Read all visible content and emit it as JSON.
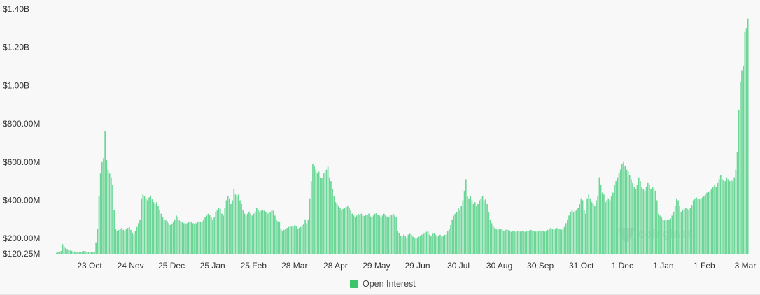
{
  "colors": {
    "bar": "#6bd797",
    "bar_edge": "#5ccc89",
    "text": "#333333",
    "legend_swatch": "#3cc46d"
  },
  "watermark": {
    "text": "coinglass"
  },
  "legend": {
    "label": "Open Interest"
  },
  "chart_data": {
    "type": "bar",
    "title": "",
    "xlabel": "",
    "ylabel": "",
    "series": [
      {
        "name": "Open Interest",
        "color": "#6bd797"
      }
    ],
    "ylim": [
      120250000,
      1400000000
    ],
    "yticks": [
      {
        "value": 120250000,
        "label": "$120.25M"
      },
      {
        "value": 200000000,
        "label": "$200.00M"
      },
      {
        "value": 400000000,
        "label": "$400.00M"
      },
      {
        "value": 600000000,
        "label": "$600.00M"
      },
      {
        "value": 800000000,
        "label": "$800.00M"
      },
      {
        "value": 1000000000,
        "label": "$1.00B"
      },
      {
        "value": 1200000000,
        "label": "$1.20B"
      },
      {
        "value": 1400000000,
        "label": "$1.40B"
      }
    ],
    "xticks": [
      "23 Oct",
      "24 Nov",
      "25 Dec",
      "25 Jan",
      "25 Feb",
      "28 Mar",
      "28 Apr",
      "29 May",
      "29 Jun",
      "30 Jul",
      "30 Aug",
      "30 Sep",
      "31 Oct",
      "1 Dec",
      "1 Jan",
      "1 Feb",
      "3 Mar"
    ],
    "grid": false,
    "legend_position": "bottom-center",
    "values_millions": [
      125,
      128,
      132,
      135,
      170,
      158,
      150,
      145,
      140,
      138,
      135,
      132,
      132,
      130,
      128,
      130,
      128,
      132,
      135,
      133,
      131,
      129,
      130,
      128,
      127,
      130,
      180,
      250,
      420,
      540,
      600,
      620,
      760,
      610,
      560,
      540,
      520,
      480,
      350,
      250,
      240,
      245,
      250,
      255,
      245,
      240,
      250,
      255,
      260,
      245,
      230,
      220,
      240,
      260,
      280,
      300,
      410,
      430,
      420,
      410,
      400,
      415,
      425,
      405,
      390,
      380,
      390,
      370,
      350,
      330,
      310,
      300,
      295,
      290,
      280,
      270,
      275,
      285,
      300,
      320,
      310,
      295,
      290,
      285,
      280,
      275,
      280,
      285,
      290,
      285,
      280,
      275,
      280,
      285,
      290,
      288,
      290,
      300,
      310,
      320,
      330,
      325,
      310,
      300,
      310,
      340,
      350,
      360,
      355,
      330,
      320,
      360,
      400,
      420,
      410,
      380,
      400,
      460,
      430,
      420,
      430,
      400,
      380,
      350,
      330,
      320,
      330,
      340,
      330,
      320,
      330,
      340,
      360,
      350,
      340,
      345,
      350,
      345,
      340,
      330,
      335,
      340,
      350,
      345,
      320,
      300,
      290,
      285,
      250,
      240,
      245,
      250,
      255,
      260,
      262,
      265,
      260,
      270,
      265,
      250,
      255,
      260,
      270,
      275,
      300,
      280,
      300,
      410,
      500,
      590,
      580,
      560,
      540,
      550,
      520,
      515,
      540,
      545,
      560,
      575,
      520,
      500,
      460,
      420,
      390,
      380,
      370,
      360,
      350,
      355,
      360,
      365,
      370,
      360,
      350,
      330,
      320,
      310,
      320,
      330,
      325,
      330,
      320,
      318,
      322,
      325,
      330,
      315,
      310,
      320,
      330,
      335,
      325,
      320,
      310,
      320,
      330,
      325,
      315,
      310,
      320,
      325,
      330,
      320,
      310,
      240,
      230,
      215,
      210,
      220,
      215,
      205,
      220,
      225,
      220,
      210,
      205,
      200,
      205,
      210,
      215,
      220,
      225,
      230,
      235,
      240,
      220,
      215,
      225,
      230,
      220,
      210,
      215,
      220,
      210,
      215,
      220,
      220,
      240,
      250,
      270,
      300,
      320,
      330,
      340,
      360,
      350,
      370,
      400,
      450,
      510,
      420,
      410,
      420,
      400,
      380,
      390,
      370,
      380,
      400,
      410,
      420,
      400,
      405,
      380,
      340,
      300,
      280,
      265,
      255,
      250,
      245,
      248,
      250,
      245,
      240,
      245,
      250,
      245,
      240,
      235,
      238,
      240,
      235,
      238,
      240,
      236,
      240,
      238,
      235,
      238,
      240,
      242,
      245,
      240,
      238,
      236,
      238,
      240,
      242,
      240,
      238,
      236,
      240,
      245,
      250,
      255,
      250,
      245,
      250,
      255,
      250,
      248,
      245,
      250,
      260,
      280,
      300,
      320,
      340,
      350,
      340,
      345,
      350,
      360,
      380,
      410,
      400,
      350,
      330,
      410,
      430,
      410,
      390,
      380,
      370,
      400,
      420,
      520,
      480,
      440,
      430,
      390,
      400,
      410,
      400,
      420,
      440,
      480,
      500,
      520,
      540,
      560,
      590,
      600,
      580,
      560,
      550,
      530,
      510,
      490,
      470,
      460,
      480,
      520,
      500,
      470,
      460,
      450,
      470,
      490,
      480,
      460,
      470,
      465,
      450,
      400,
      330,
      320,
      310,
      300,
      295,
      295,
      298,
      300,
      305,
      320,
      340,
      370,
      410,
      400,
      370,
      340,
      350,
      355,
      360,
      355,
      350,
      360,
      375,
      400,
      410,
      415,
      410,
      405,
      410,
      415,
      420,
      430,
      440,
      445,
      450,
      460,
      470,
      480,
      470,
      490,
      510,
      530,
      510,
      505,
      500,
      520,
      510,
      500,
      505,
      500,
      520,
      560,
      650,
      870,
      1020,
      1080,
      1100,
      1280,
      1300,
      1350
    ]
  }
}
